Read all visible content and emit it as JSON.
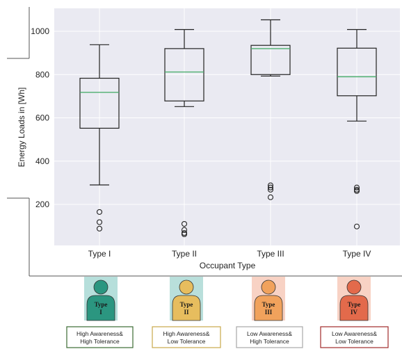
{
  "chart_data": {
    "type": "boxplot",
    "xlabel": "Occupant Type",
    "ylabel": "Energy Loads in [Wh]",
    "ylim": [
      0,
      1100
    ],
    "yticks": [
      200,
      400,
      600,
      800,
      1000
    ],
    "grid": true,
    "categories": [
      "Type I",
      "Type II",
      "Type III",
      "Type IV"
    ],
    "boxes": [
      {
        "whisker_low": 290,
        "q1": 552,
        "median": 718,
        "q3": 783,
        "whisker_high": 938,
        "outliers": [
          165,
          118,
          88
        ]
      },
      {
        "whisker_low": 652,
        "q1": 678,
        "median": 812,
        "q3": 920,
        "whisker_high": 1008,
        "outliers": [
          110,
          82,
          68,
          62
        ]
      },
      {
        "whisker_low": 793,
        "q1": 800,
        "median": 920,
        "q3": 935,
        "whisker_high": 1053,
        "outliers": [
          288,
          278,
          268,
          233
        ]
      },
      {
        "whisker_low": 585,
        "q1": 702,
        "median": 790,
        "q3": 922,
        "whisker_high": 1008,
        "outliers": [
          278,
          268,
          262,
          98
        ]
      }
    ]
  },
  "occupants": [
    {
      "label_line1": "Type",
      "label_line2": "I",
      "color": "#2b9680",
      "bg": "#b6dfdb",
      "card_line1": "High Awareness&",
      "card_line2": "High Tolerance",
      "border": "#3b6b33"
    },
    {
      "label_line1": "Type",
      "label_line2": "II",
      "color": "#e7bd5e",
      "bg": "#b9dfdb",
      "card_line1": "High Awareness&",
      "card_line2": "Low Tolerance",
      "border": "#c9a84a"
    },
    {
      "label_line1": "Type",
      "label_line2": "III",
      "color": "#f1a25c",
      "bg": "#f8d2c4",
      "card_line1": "Low Awareness&",
      "card_line2": "High Tolerance",
      "border": "#a8a8a8"
    },
    {
      "label_line1": "Type",
      "label_line2": "IV",
      "color": "#e36a4b",
      "bg": "#f8d2c4",
      "card_line1": "Low Awareness&",
      "card_line2": "Low Tolerance",
      "border": "#a12a2a"
    }
  ],
  "colors": {
    "plot_bg": "#eaeaf2",
    "grid": "#ffffff",
    "median": "#4caf6e",
    "box": "#222222"
  }
}
